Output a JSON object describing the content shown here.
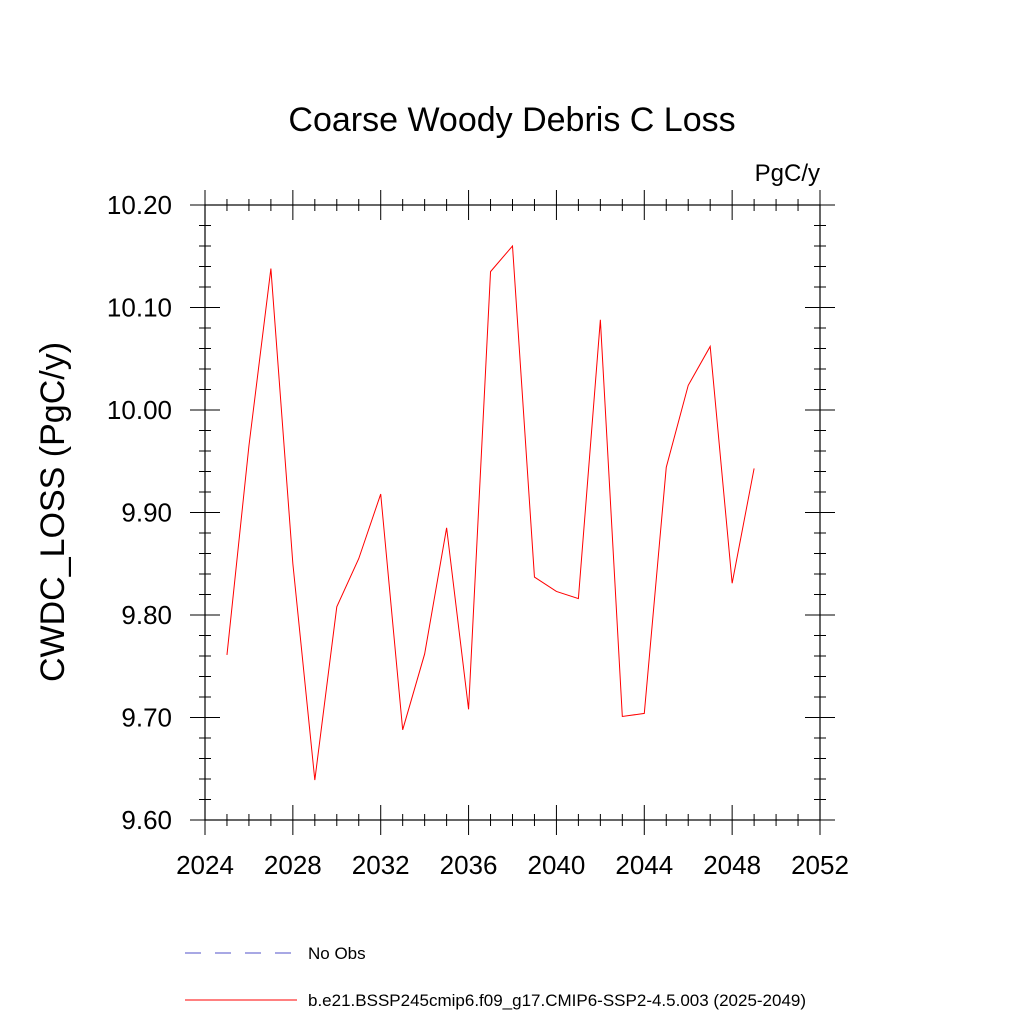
{
  "chart_data": {
    "type": "line",
    "title": "Coarse Woody Debris C Loss",
    "units_label": "PgC/y",
    "ylabel": "CWDC_LOSS  (PgC/y)",
    "xlabel": "",
    "xlim": [
      2024,
      2052
    ],
    "ylim": [
      9.6,
      10.2
    ],
    "x_ticks": [
      2024,
      2028,
      2032,
      2036,
      2040,
      2044,
      2048,
      2052
    ],
    "x_tick_labels": [
      "2024",
      "2028",
      "2032",
      "2036",
      "2040",
      "2044",
      "2048",
      "2052"
    ],
    "y_ticks": [
      9.6,
      9.7,
      9.8,
      9.9,
      10.0,
      10.1,
      10.2
    ],
    "y_tick_labels": [
      "9.60",
      "9.70",
      "9.80",
      "9.90",
      "10.00",
      "10.10",
      "10.20"
    ],
    "grid": false,
    "legend_position": "bottom",
    "series": [
      {
        "name": "b.e21.BSSP245cmip6.f09_g17.CMIP6-SSP2-4.5.003 (2025-2049)",
        "color": "#ff0000",
        "style": "solid",
        "x": [
          2025,
          2026,
          2027,
          2028,
          2029,
          2030,
          2031,
          2032,
          2033,
          2034,
          2035,
          2036,
          2037,
          2038,
          2039,
          2040,
          2041,
          2042,
          2043,
          2044,
          2045,
          2046,
          2047,
          2048,
          2049
        ],
        "values": [
          9.761,
          9.965,
          10.138,
          9.85,
          9.639,
          9.808,
          9.855,
          9.918,
          9.688,
          9.762,
          9.885,
          9.708,
          10.135,
          10.16,
          9.837,
          9.823,
          9.816,
          10.088,
          9.701,
          9.704,
          9.944,
          10.024,
          10.062,
          9.831,
          9.943
        ]
      }
    ],
    "legend": [
      {
        "label": "No Obs",
        "color": "#5050c8",
        "style": "dashed"
      },
      {
        "label": "b.e21.BSSP245cmip6.f09_g17.CMIP6-SSP2-4.5.003 (2025-2049)",
        "color": "#ff0000",
        "style": "solid"
      }
    ]
  }
}
